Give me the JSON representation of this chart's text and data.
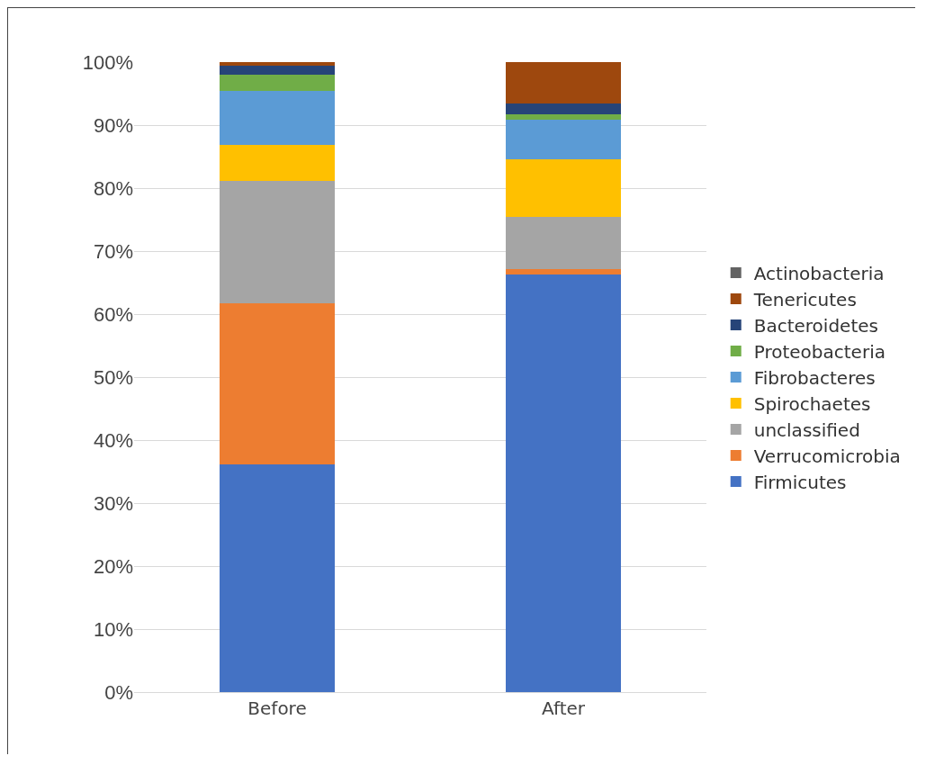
{
  "chart_data": {
    "type": "bar",
    "stacked": true,
    "categories": [
      "Before",
      "After"
    ],
    "series": [
      {
        "name": "Firmicutes",
        "color": "#4472c4",
        "values": [
          36.1,
          66.3
        ]
      },
      {
        "name": "Verrucomicrobia",
        "color": "#ed7d31",
        "values": [
          25.6,
          0.9
        ]
      },
      {
        "name": "unclassified",
        "color": "#a5a5a5",
        "values": [
          19.4,
          8.2
        ]
      },
      {
        "name": "Spirochaetes",
        "color": "#ffc000",
        "values": [
          5.7,
          9.2
        ]
      },
      {
        "name": "Fibrobacteres",
        "color": "#5b9bd5",
        "values": [
          8.7,
          6.2
        ]
      },
      {
        "name": "Proteobacteria",
        "color": "#70ad47",
        "values": [
          2.5,
          0.9
        ]
      },
      {
        "name": "Bacteroidetes",
        "color": "#264478",
        "values": [
          1.5,
          1.7
        ]
      },
      {
        "name": "Tenericutes",
        "color": "#9e480e",
        "values": [
          0.5,
          6.6
        ]
      },
      {
        "name": "Actinobacteria",
        "color": "#636363",
        "values": [
          0,
          0
        ]
      }
    ],
    "ylim": [
      0,
      100
    ],
    "yticks": [
      {
        "value": 0,
        "label": "0%"
      },
      {
        "value": 10,
        "label": "10%"
      },
      {
        "value": 20,
        "label": "20%"
      },
      {
        "value": 30,
        "label": "30%"
      },
      {
        "value": 40,
        "label": "40%"
      },
      {
        "value": 50,
        "label": "50%"
      },
      {
        "value": 60,
        "label": "60%"
      },
      {
        "value": 70,
        "label": "70%"
      },
      {
        "value": 80,
        "label": "80%"
      },
      {
        "value": 90,
        "label": "90%"
      },
      {
        "value": 100,
        "label": "100%"
      }
    ],
    "grid": "y",
    "legend": "right"
  }
}
